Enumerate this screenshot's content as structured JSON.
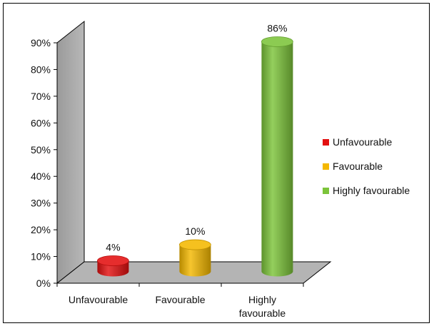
{
  "chart_data": {
    "type": "bar",
    "style": "3d-cylinder",
    "categories": [
      "Unfavourable",
      "Favourable",
      "Highly favourable"
    ],
    "category_tick_labels": [
      [
        "Unfavourable"
      ],
      [
        "Favourable"
      ],
      [
        "Highly",
        "favourable"
      ]
    ],
    "values": [
      4,
      10,
      86
    ],
    "data_labels": [
      "4%",
      "10%",
      "86%"
    ],
    "ylim": [
      0,
      90
    ],
    "yticks": [
      0,
      10,
      20,
      30,
      40,
      50,
      60,
      70,
      80,
      90
    ],
    "ytick_labels": [
      "0%",
      "10%",
      "20%",
      "30%",
      "40%",
      "50%",
      "60%",
      "70%",
      "80%",
      "90%"
    ],
    "grid": false,
    "legend": {
      "placement": "right",
      "entries": [
        "Unfavourable",
        "Favourable",
        "Highly favourable"
      ]
    },
    "colors": {
      "Unfavourable": "#e31010",
      "Favourable": "#f4b800",
      "Highly favourable": "#7cc43a",
      "wall": "#a8a8a8",
      "floor": "#b4b4b4"
    }
  }
}
